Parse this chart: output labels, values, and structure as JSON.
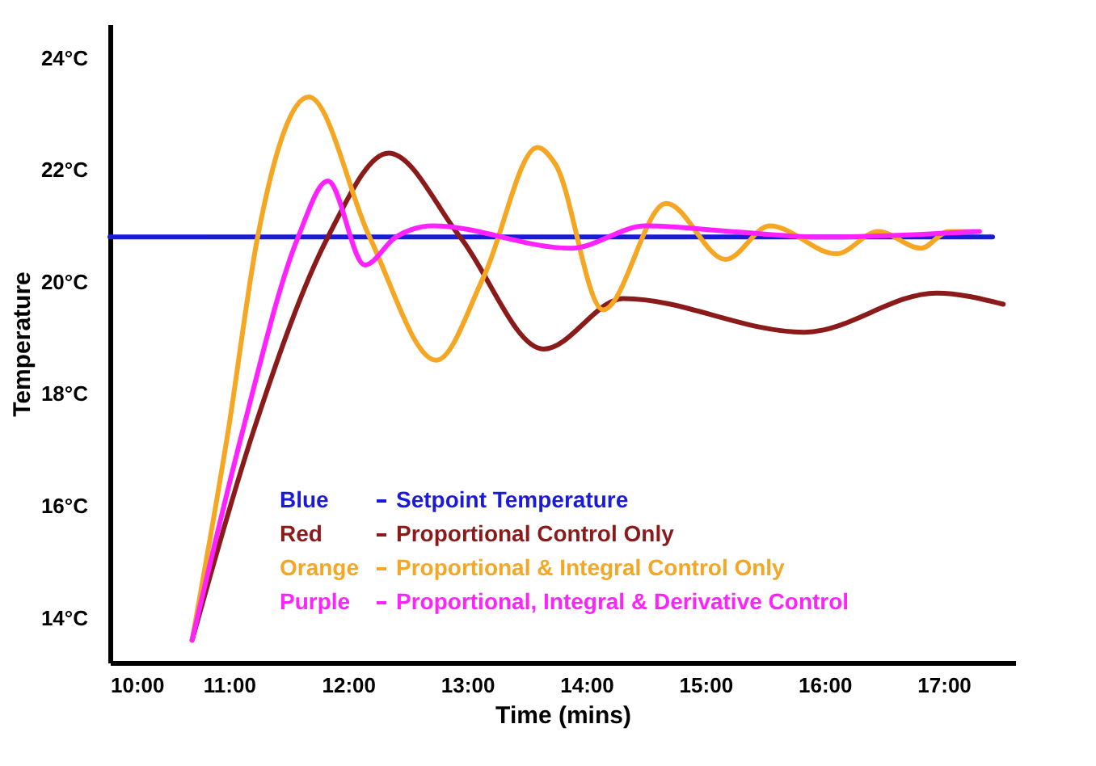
{
  "chart_data": {
    "type": "line",
    "xlabel": "Time (mins)",
    "ylabel": "Temperature",
    "xlim": [
      10,
      17.6
    ],
    "ylim": [
      13.2,
      24.6
    ],
    "xticks": [
      {
        "value": 10,
        "label": "10:00"
      },
      {
        "value": 11,
        "label": "11:00"
      },
      {
        "value": 12,
        "label": "12:00"
      },
      {
        "value": 13,
        "label": "13:00"
      },
      {
        "value": 14,
        "label": "14:00"
      },
      {
        "value": 15,
        "label": "15:00"
      },
      {
        "value": 16,
        "label": "16:00"
      },
      {
        "value": 17,
        "label": "17:00"
      }
    ],
    "yticks": [
      {
        "value": 14,
        "label": "14°C"
      },
      {
        "value": 16,
        "label": "16°C"
      },
      {
        "value": 18,
        "label": "18°C"
      },
      {
        "value": 20,
        "label": "20°C"
      },
      {
        "value": 22,
        "label": "22°C"
      },
      {
        "value": 24,
        "label": "24°C"
      }
    ],
    "grid": false,
    "legend": "bottom",
    "marker": "none",
    "line_style": "solid",
    "annotations": [
      "Blue",
      "Red",
      "Orange",
      "Purple"
    ],
    "series": [
      {
        "name": "Setpoint Temperature",
        "color": "#1a1adb",
        "x": [
          10,
          17.41
        ],
        "values": [
          20.8,
          20.8
        ]
      },
      {
        "name": "Proportional Control Only",
        "color": "#8b1a1a",
        "x": [
          10.69,
          11.2,
          11.83,
          12.34,
          12.94,
          13.64,
          14.31,
          15.83,
          16.94,
          17.5
        ],
        "values": [
          13.6,
          17.3,
          20.8,
          22.3,
          20.8,
          18.8,
          19.7,
          19.1,
          19.8,
          19.6
        ]
      },
      {
        "name": "Proportional & Integral Control Only",
        "color": "#f5a623",
        "x": [
          10.69,
          10.99,
          11.24,
          11.67,
          12.18,
          12.74,
          13.14,
          13.59,
          13.74,
          14.14,
          14.67,
          15.17,
          15.54,
          16.1,
          16.45,
          16.81,
          17.04,
          17.25
        ],
        "values": [
          13.6,
          17.3,
          20.8,
          23.3,
          20.8,
          18.6,
          20.1,
          22.4,
          22.1,
          19.5,
          21.4,
          20.4,
          21.0,
          20.5,
          20.9,
          20.6,
          20.9,
          20.9
        ]
      },
      {
        "name": "Proportional, Integral & Derivative Control",
        "color": "#ff22ff",
        "x": [
          10.69,
          11.11,
          11.58,
          11.83,
          12.14,
          12.4,
          12.71,
          13.87,
          14.5,
          15.21,
          15.97,
          17.3
        ],
        "values": [
          13.6,
          17.3,
          20.8,
          21.8,
          20.3,
          20.8,
          21.0,
          20.6,
          21.0,
          20.9,
          20.8,
          20.9
        ]
      }
    ]
  }
}
